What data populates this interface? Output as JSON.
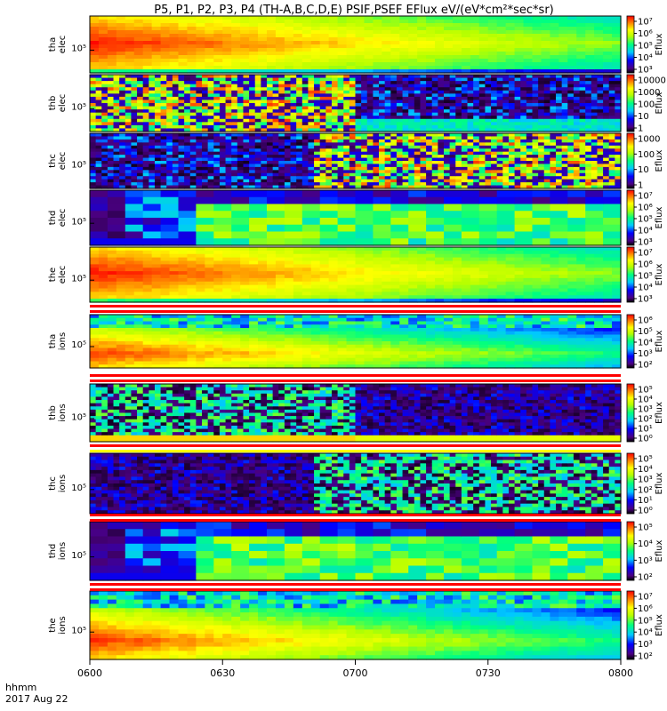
{
  "chart_data": {
    "type": "heatmap",
    "title": "P5, P1, P2, P3, P4 (TH-A,B,C,D,E) PSIF,PSEF EFlux eV/(eV*cm²*sec*sr)",
    "x_label_line1": "hhmm",
    "x_label_line2": "2017 Aug 22",
    "x_ticks": [
      "0600",
      "0630",
      "0700",
      "0730",
      "0800"
    ],
    "x_range": [
      "0600",
      "0800"
    ],
    "colorbar_label": "Eflux",
    "panels": [
      {
        "id": "tha_elec",
        "ylabel": [
          "tha",
          "elec"
        ],
        "ytick": "10⁵",
        "cbar_ticks": [
          "10⁷",
          "10⁶",
          "10⁵",
          "10⁴",
          "10³"
        ],
        "cbar_range_exp": [
          2.6,
          7.2
        ],
        "pattern": "smooth-hot",
        "change_at": null
      },
      {
        "id": "thb_elec",
        "ylabel": [
          "thb",
          "elec"
        ],
        "ytick": "10⁵",
        "cbar_ticks": [
          "10000",
          "1000",
          "100",
          "10",
          "1"
        ],
        "cbar_range_exp": [
          0,
          4.6
        ],
        "pattern": "noisy-switch",
        "change_at": "0700"
      },
      {
        "id": "thc_elec",
        "ylabel": [
          "thc",
          "elec"
        ],
        "ytick": "10⁵",
        "cbar_ticks": [
          "1000",
          "100",
          "10",
          "1"
        ],
        "cbar_range_exp": [
          0,
          3.4
        ],
        "pattern": "noisy-switch",
        "change_at": "0650"
      },
      {
        "id": "thd_elec",
        "ylabel": [
          "thd",
          "elec"
        ],
        "ytick": "10⁵",
        "cbar_ticks": [
          "10⁷",
          "10⁶",
          "10⁵",
          "10⁴",
          "10³"
        ],
        "cbar_range_exp": [
          2.6,
          7.2
        ],
        "pattern": "blocky-green",
        "change_at": "0622"
      },
      {
        "id": "the_elec",
        "ylabel": [
          "the",
          "elec"
        ],
        "ytick": "10⁵",
        "cbar_ticks": [
          "10⁷",
          "10⁶",
          "10⁵",
          "10⁴",
          "10³"
        ],
        "cbar_range_exp": [
          2.6,
          7.2
        ],
        "pattern": "smooth-hot",
        "change_at": null
      },
      {
        "id": "tha_ions",
        "ylabel": [
          "tha",
          "ions"
        ],
        "ytick": "10⁵",
        "cbar_ticks": [
          "10⁶",
          "10⁵",
          "10⁴",
          "10³",
          "10²"
        ],
        "cbar_range_exp": [
          1.6,
          6.4
        ],
        "pattern": "ion-hot",
        "change_at": null
      },
      {
        "id": "thb_ions",
        "ylabel": [
          "thb",
          "ions"
        ],
        "ytick": "10⁵",
        "cbar_ticks": [
          "10⁵",
          "10⁴",
          "10³",
          "10²",
          "10¹",
          "10⁰"
        ],
        "cbar_range_exp": [
          -0.3,
          5.4
        ],
        "pattern": "noisy-switch-ion",
        "change_at": "0700"
      },
      {
        "id": "thc_ions",
        "ylabel": [
          "thc",
          "ions"
        ],
        "ytick": "10⁵",
        "cbar_ticks": [
          "10⁵",
          "10⁴",
          "10³",
          "10²",
          "10¹",
          "10⁰"
        ],
        "cbar_range_exp": [
          -0.3,
          5.4
        ],
        "pattern": "noisy-switch-ion",
        "change_at": "0650"
      },
      {
        "id": "thd_ions",
        "ylabel": [
          "thd",
          "ions"
        ],
        "ytick": "10⁵",
        "cbar_ticks": [
          "10⁵",
          "10⁴",
          "10³",
          "10²"
        ],
        "cbar_range_exp": [
          1.6,
          5.6
        ],
        "pattern": "blocky-green",
        "change_at": "0622"
      },
      {
        "id": "the_ions",
        "ylabel": [
          "the",
          "ions"
        ],
        "ytick": "10⁵",
        "cbar_ticks": [
          "10⁷",
          "10⁶",
          "10⁵",
          "10⁴",
          "10³",
          "10²"
        ],
        "cbar_range_exp": [
          1.6,
          7.2
        ],
        "pattern": "ion-hot",
        "change_at": null
      }
    ]
  }
}
